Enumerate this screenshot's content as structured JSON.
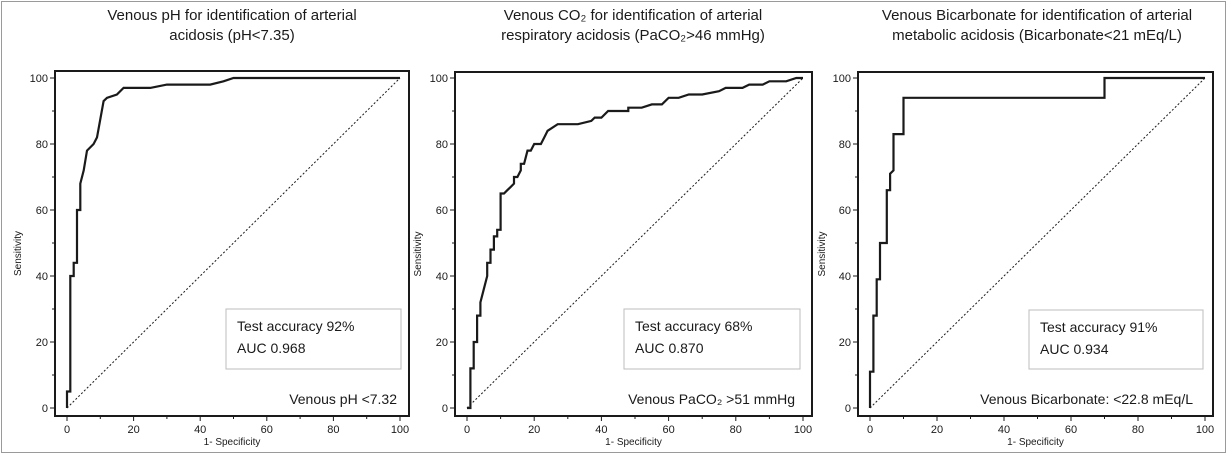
{
  "chart_data": [
    {
      "type": "line",
      "title": [
        "Venous pH for identification of arterial",
        "acidosis (pH<7.35)"
      ],
      "xlabel": "1- Specificity",
      "ylabel": "Sensitivity",
      "xlim": [
        0,
        100
      ],
      "ylim": [
        0,
        100
      ],
      "x_ticks": [
        "0",
        "20",
        "40",
        "60",
        "80",
        "100"
      ],
      "y_ticks": [
        "0",
        "20",
        "40",
        "60",
        "80",
        "100"
      ],
      "grid": false,
      "legend_box": [
        "Test accuracy 92%",
        "AUC 0.968"
      ],
      "threshold_label": "Venous pH <7.32",
      "reference_line": [
        [
          0,
          0
        ],
        [
          100,
          100
        ]
      ],
      "series": [
        {
          "style": "roc",
          "points": [
            [
              0,
              0
            ],
            [
              0,
              5
            ],
            [
              1,
              5
            ],
            [
              1,
              40
            ],
            [
              2,
              40
            ],
            [
              2,
              44
            ],
            [
              3,
              44
            ],
            [
              3,
              60
            ],
            [
              4,
              60
            ],
            [
              4,
              68
            ],
            [
              5,
              72
            ],
            [
              6,
              78
            ],
            [
              8,
              80
            ],
            [
              9,
              82
            ],
            [
              11,
              93
            ],
            [
              12,
              94
            ],
            [
              15,
              95
            ],
            [
              17,
              97
            ],
            [
              25,
              97
            ],
            [
              30,
              98
            ],
            [
              35,
              98
            ],
            [
              40,
              98
            ],
            [
              43,
              98
            ],
            [
              47,
              99
            ],
            [
              50,
              100
            ],
            [
              100,
              100
            ]
          ]
        }
      ]
    },
    {
      "type": "line",
      "title": [
        "Venous CO₂ for identification of arterial",
        "respiratory acidosis (PaCO₂>46 mmHg)"
      ],
      "xlabel": "1- Specificity",
      "ylabel": "Sensitivity",
      "xlim": [
        0,
        100
      ],
      "ylim": [
        0,
        100
      ],
      "x_ticks": [
        "0",
        "20",
        "40",
        "60",
        "80",
        "100"
      ],
      "y_ticks": [
        "0",
        "20",
        "40",
        "60",
        "80",
        "100"
      ],
      "grid": false,
      "legend_box": [
        "Test accuracy 68%",
        "AUC 0.870"
      ],
      "threshold_label": "Venous PaCO₂ >51 mmHg",
      "reference_line": [
        [
          0,
          0
        ],
        [
          100,
          100
        ]
      ],
      "series": [
        {
          "style": "roc",
          "points": [
            [
              0,
              0
            ],
            [
              1,
              0
            ],
            [
              1,
              12
            ],
            [
              2,
              12
            ],
            [
              2,
              20
            ],
            [
              3,
              20
            ],
            [
              3,
              28
            ],
            [
              4,
              28
            ],
            [
              4,
              32
            ],
            [
              5,
              36
            ],
            [
              6,
              40
            ],
            [
              6,
              44
            ],
            [
              7,
              44
            ],
            [
              7,
              48
            ],
            [
              8,
              48
            ],
            [
              8,
              52
            ],
            [
              9,
              52
            ],
            [
              9,
              54
            ],
            [
              10,
              54
            ],
            [
              10,
              65
            ],
            [
              11,
              65
            ],
            [
              12,
              66
            ],
            [
              13,
              67
            ],
            [
              14,
              68
            ],
            [
              14,
              70
            ],
            [
              15,
              70
            ],
            [
              16,
              72
            ],
            [
              16,
              74
            ],
            [
              17,
              74
            ],
            [
              18,
              78
            ],
            [
              19,
              78
            ],
            [
              20,
              80
            ],
            [
              22,
              80
            ],
            [
              23,
              82
            ],
            [
              24,
              84
            ],
            [
              27,
              86
            ],
            [
              30,
              86
            ],
            [
              33,
              86
            ],
            [
              37,
              87
            ],
            [
              38,
              88
            ],
            [
              40,
              88
            ],
            [
              42,
              90
            ],
            [
              48,
              90
            ],
            [
              48,
              91
            ],
            [
              52,
              91
            ],
            [
              55,
              92
            ],
            [
              58,
              92
            ],
            [
              60,
              94
            ],
            [
              63,
              94
            ],
            [
              66,
              95
            ],
            [
              70,
              95
            ],
            [
              75,
              96
            ],
            [
              77,
              97
            ],
            [
              82,
              97
            ],
            [
              84,
              98
            ],
            [
              88,
              98
            ],
            [
              90,
              99
            ],
            [
              95,
              99
            ],
            [
              98,
              100
            ],
            [
              100,
              100
            ]
          ]
        }
      ]
    },
    {
      "type": "line",
      "title": [
        "Venous Bicarbonate for identification of arterial",
        "metabolic acidosis (Bicarbonate<21 mEq/L)"
      ],
      "xlabel": "1- Specificity",
      "ylabel": "Sensitivity",
      "xlim": [
        0,
        100
      ],
      "ylim": [
        0,
        100
      ],
      "x_ticks": [
        "0",
        "20",
        "40",
        "60",
        "80",
        "100"
      ],
      "y_ticks": [
        "0",
        "20",
        "40",
        "60",
        "80",
        "100"
      ],
      "grid": false,
      "legend_box": [
        "Test accuracy 91%",
        "AUC 0.934"
      ],
      "threshold_label": "Venous Bicarbonate: <22.8 mEq/L",
      "reference_line": [
        [
          0,
          0
        ],
        [
          100,
          100
        ]
      ],
      "series": [
        {
          "style": "roc",
          "points": [
            [
              0,
              0
            ],
            [
              0,
              11
            ],
            [
              1,
              11
            ],
            [
              1,
              28
            ],
            [
              2,
              28
            ],
            [
              2,
              39
            ],
            [
              3,
              39
            ],
            [
              3,
              50
            ],
            [
              5,
              50
            ],
            [
              5,
              66
            ],
            [
              6,
              66
            ],
            [
              6,
              71
            ],
            [
              7,
              72
            ],
            [
              7,
              83
            ],
            [
              10,
              83
            ],
            [
              10,
              94
            ],
            [
              70,
              94
            ],
            [
              70,
              100
            ],
            [
              100,
              100
            ]
          ]
        }
      ]
    }
  ]
}
